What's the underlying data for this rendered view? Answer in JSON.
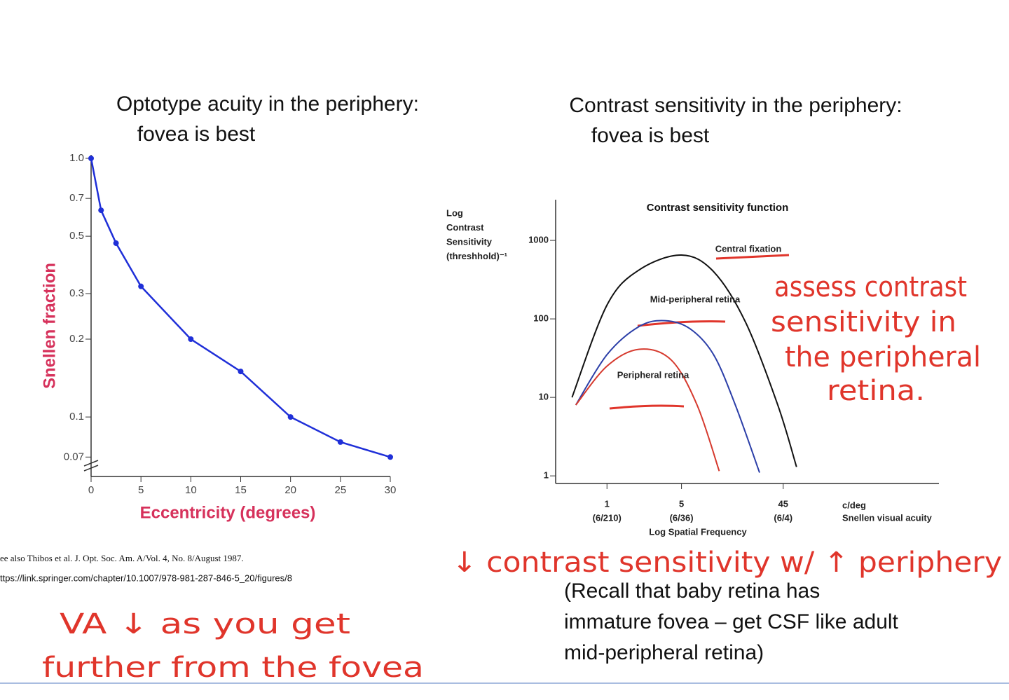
{
  "slide": {
    "left_heading": [
      "Optotype acuity in the periphery:",
      "fovea is best"
    ],
    "right_heading": [
      "Contrast sensitivity in the periphery:",
      "fovea is best"
    ],
    "citations": [
      "ee also Thibos et al. J. Opt. Soc. Am. A/Vol. 4, No. 8/August 1987.",
      "ttps://link.springer.com/chapter/10.1007/978-981-287-846-5_20/figures/8"
    ],
    "note": [
      "(Recall that baby retina has",
      "immature fovea – get CSF like adult",
      "mid-peripheral retina)"
    ],
    "handwriting": {
      "left": [
        "VA ↓ as you get",
        "further from the fovea"
      ],
      "right": [
        "assess contrast",
        "sensitivity in",
        "the peripheral",
        "retina."
      ],
      "bottom": "↓ contrast sensitivity w/ ↑ periphery"
    }
  },
  "chart_data": [
    {
      "type": "line",
      "x": [
        0,
        1,
        2.5,
        5,
        10,
        15,
        20,
        25,
        30
      ],
      "series": [
        {
          "color": "#1f2fd8",
          "values": [
            1,
            0.63,
            0.47,
            0.32,
            0.2,
            0.15,
            0.1,
            0.08,
            0.07
          ]
        }
      ],
      "x_label": "Eccentricity (degrees)",
      "y_label": "Snellen fraction",
      "label_color": "#d6315b",
      "xlim": [
        0,
        30
      ],
      "ylim": [
        0.06,
        1
      ],
      "xticks": [
        0,
        5,
        10,
        15,
        20,
        25,
        30
      ],
      "yticks": [
        0.07,
        0.1,
        0.2,
        0.3,
        0.5,
        0.7,
        {
          "value": 1,
          "label": "1.0"
        }
      ],
      "log_y": true,
      "markers": true
    },
    {
      "type": "line",
      "title": "Contrast sensitivity function",
      "y_label": [
        "Log",
        "Contrast",
        "Sensitivity",
        "(threshhold)⁻¹"
      ],
      "x_label": "Log Spatial Frequency",
      "x_unit": "c/deg",
      "x_unit_sub": "Snellen visual acuity",
      "series": [
        {
          "name": "Central fixation",
          "color": "#111111",
          "x": [
            0.47,
            1,
            2,
            5,
            10,
            20,
            40,
            60
          ],
          "values": [
            10,
            150,
            420,
            650,
            400,
            90,
            8,
            1.3
          ]
        },
        {
          "name": "Mid-peripheral retina",
          "color": "#2c3fa8",
          "x": [
            0.51,
            1,
            2,
            3.5,
            6,
            10,
            16,
            27
          ],
          "values": [
            8,
            35,
            80,
            95,
            75,
            35,
            8,
            1.1
          ]
        },
        {
          "name": "Peripheral retina",
          "color": "#d63a2e",
          "x": [
            0.51,
            1,
            2,
            4,
            7,
            11.3
          ],
          "values": [
            8,
            25,
            41,
            30,
            8,
            1.15
          ]
        }
      ],
      "xlim": [
        0.33,
        1300
      ],
      "ylim": [
        0.8,
        3300
      ],
      "xticks": [
        1,
        5,
        45
      ],
      "xtick_sublabels": [
        "(6/210)",
        "(6/36)",
        "(6/4)"
      ],
      "yticks": [
        1,
        10,
        100,
        1000
      ],
      "log_x": true,
      "log_y": true,
      "markers": false
    }
  ]
}
